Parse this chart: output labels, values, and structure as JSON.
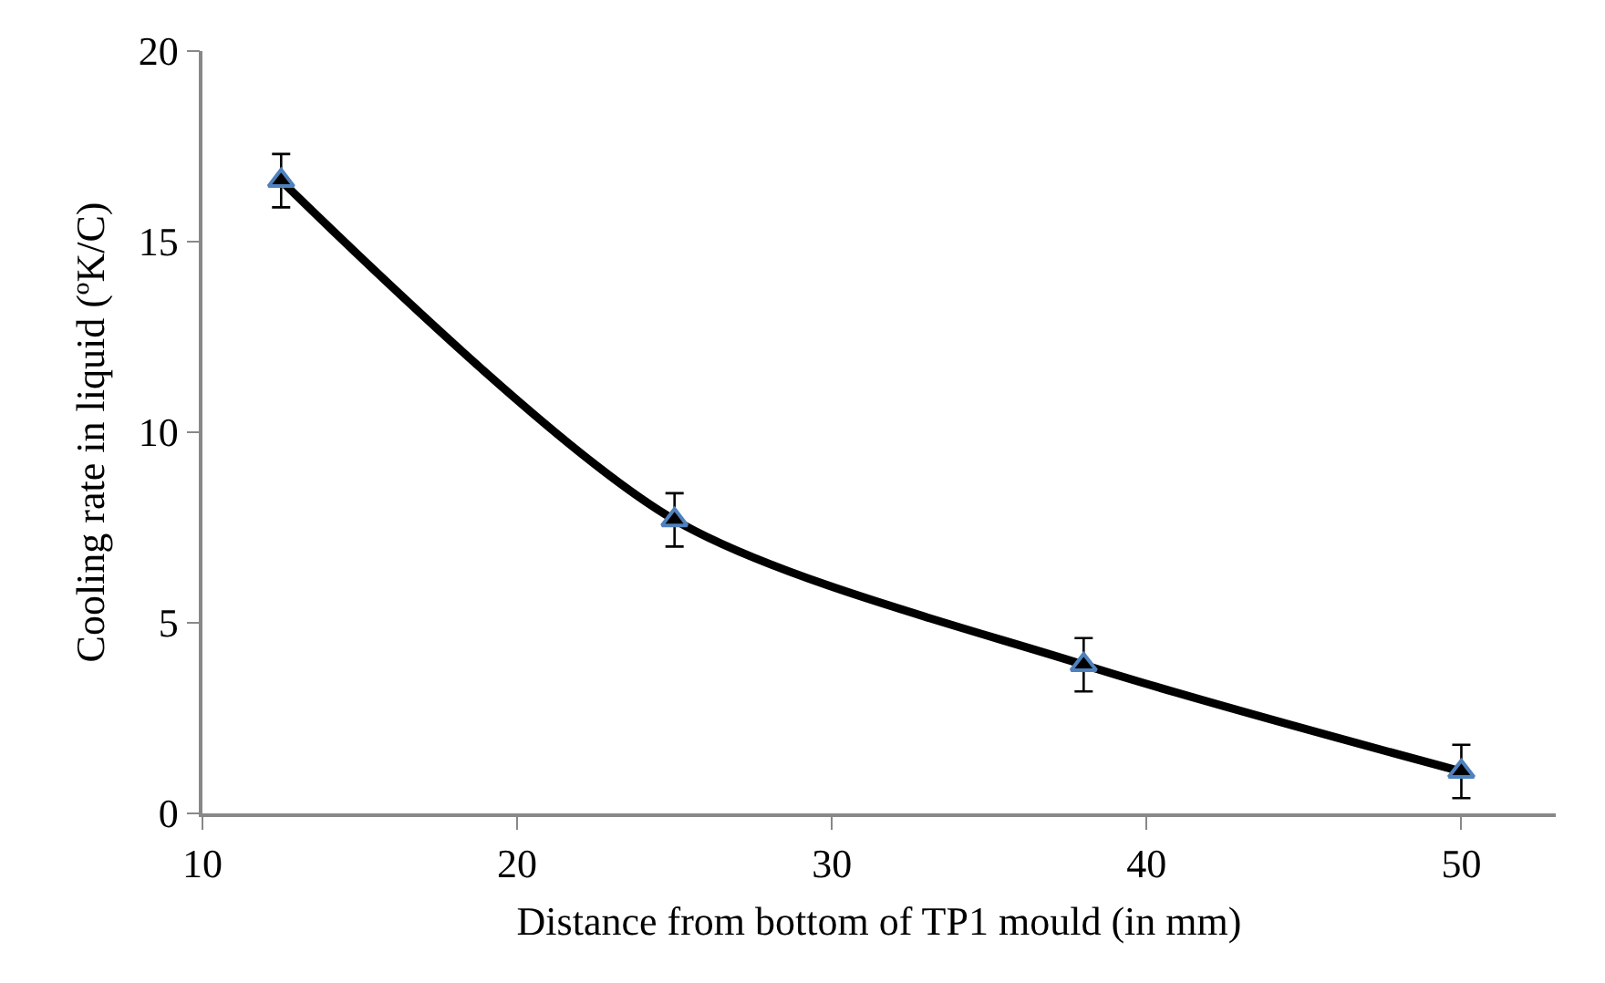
{
  "chart_data": {
    "type": "line",
    "xlabel": "Distance from bottom of TP1 mould (in mm)",
    "ylabel": "Cooling rate in liquid (ºK/C)",
    "x": [
      12.5,
      25,
      38,
      50
    ],
    "series": [
      {
        "color": "#000000",
        "values": [
          16.6,
          7.7,
          3.9,
          1.1
        ],
        "errors": [
          0.7,
          0.7,
          0.7,
          0.7
        ]
      }
    ],
    "xlim": [
      10,
      53
    ],
    "xticks": [
      10,
      20,
      30,
      40,
      50
    ],
    "ylim": [
      0,
      20
    ],
    "yticks": [
      0,
      5,
      10,
      15,
      20
    ],
    "grid": false,
    "marker": "triangle",
    "line_style": "solid"
  }
}
